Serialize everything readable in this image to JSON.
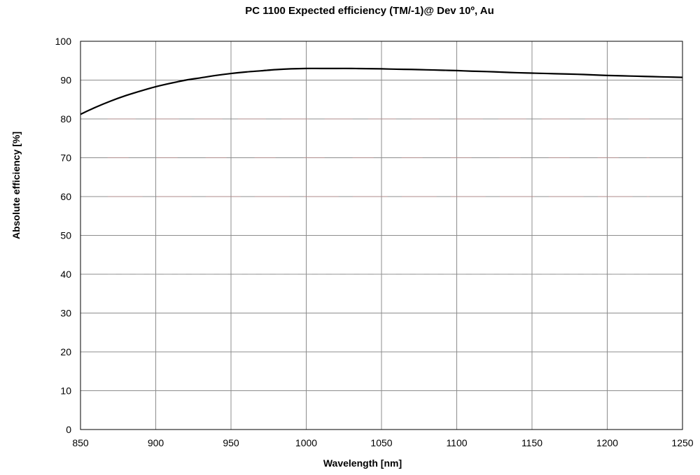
{
  "chart_data": {
    "type": "line",
    "title": "PC 1100 Expected efficiency (TM/-1)@ Dev 10º, Au",
    "xlabel": "Wavelength [nm]",
    "ylabel": "Absolute efficiency [%]",
    "xlim": [
      850,
      1250
    ],
    "ylim": [
      0,
      100
    ],
    "xticks": [
      850,
      900,
      950,
      1000,
      1050,
      1100,
      1150,
      1200,
      1250
    ],
    "yticks": [
      0,
      10,
      20,
      30,
      40,
      50,
      60,
      70,
      80,
      90,
      100
    ],
    "grid": true,
    "series": [
      {
        "x": [
          850,
          860,
          870,
          880,
          890,
          900,
          910,
          920,
          930,
          940,
          950,
          960,
          970,
          980,
          990,
          1000,
          1010,
          1020,
          1030,
          1040,
          1050,
          1060,
          1070,
          1080,
          1090,
          1100,
          1110,
          1120,
          1130,
          1140,
          1150,
          1160,
          1170,
          1180,
          1190,
          1200,
          1210,
          1220,
          1230,
          1240,
          1250
        ],
        "y": [
          81.2,
          83.0,
          84.6,
          86.0,
          87.2,
          88.3,
          89.2,
          90.0,
          90.6,
          91.2,
          91.7,
          92.1,
          92.4,
          92.7,
          92.9,
          93.0,
          93.0,
          93.0,
          93.0,
          92.95,
          92.9,
          92.8,
          92.75,
          92.65,
          92.55,
          92.45,
          92.3,
          92.2,
          92.05,
          91.9,
          91.8,
          91.7,
          91.6,
          91.5,
          91.35,
          91.2,
          91.1,
          91.0,
          90.9,
          90.8,
          90.7
        ],
        "color": "#000000"
      }
    ]
  }
}
